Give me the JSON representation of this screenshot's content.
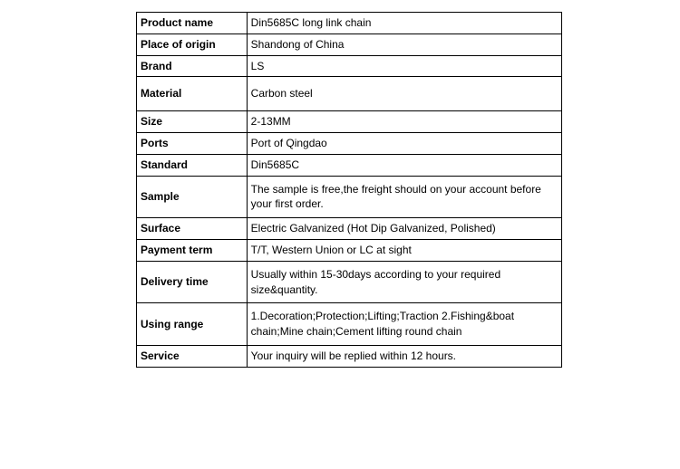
{
  "table": {
    "rows": [
      {
        "label": "Product name",
        "value": "Din5685C long link chain",
        "height": "normal"
      },
      {
        "label": "Place of origin",
        "value": "Shandong of China",
        "height": "normal"
      },
      {
        "label": "Brand",
        "value": "LS",
        "height": "normal"
      },
      {
        "label": "Material",
        "value": "Carbon steel",
        "height": "tall"
      },
      {
        "label": "Size",
        "value": "2-13MM",
        "height": "normal"
      },
      {
        "label": "Ports",
        "value": "Port of Qingdao",
        "height": "normal"
      },
      {
        "label": "Standard",
        "value": "Din5685C",
        "height": "normal"
      },
      {
        "label": "Sample",
        "value": "The sample is free,the freight should on your account before your first order.",
        "height": "med"
      },
      {
        "label": "Surface",
        "value": "Electric Galvanized (Hot Dip Galvanized, Polished)",
        "height": "normal"
      },
      {
        "label": "Payment term",
        "value": "T/T, Western Union or LC at sight",
        "height": "normal"
      },
      {
        "label": "Delivery time",
        "value": "Usually within 15-30days according to your required size&quantity.",
        "height": "med"
      },
      {
        "label": "Using range",
        "value": "1.Decoration;Protection;Lifting;Traction 2.Fishing&boat chain;Mine chain;Cement lifting round chain",
        "height": "med"
      },
      {
        "label": "Service",
        "value": "Your inquiry will be replied within 12 hours.",
        "height": "normal"
      }
    ],
    "border_color": "#000000",
    "text_color": "#000000",
    "background_color": "#ffffff",
    "font_size": 12,
    "label_font_weight": "bold",
    "label_col_width": 122,
    "value_col_width": 348
  }
}
